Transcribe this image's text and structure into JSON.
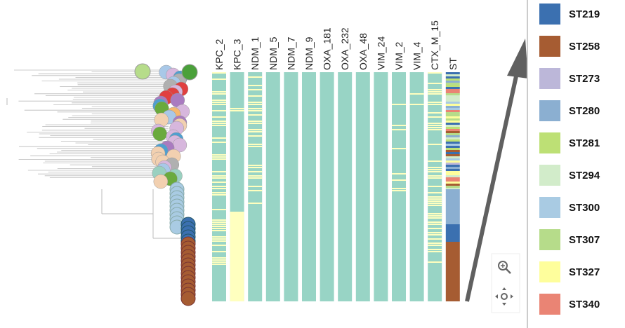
{
  "heatmap": {
    "columns": [
      "KPC_2",
      "KPC_3",
      "NDM_1",
      "NDM_5",
      "NDM_7",
      "NDM_9",
      "OXA_181",
      "OXA_232",
      "OXA_48",
      "VIM_24",
      "VIM_2",
      "VIM_4",
      "CTX_M_15",
      "ST"
    ]
  },
  "legend": [
    {
      "label": "ST219",
      "color": "#3b70b0"
    },
    {
      "label": "ST258",
      "color": "#a65c32"
    },
    {
      "label": "ST273",
      "color": "#bcb7d9"
    },
    {
      "label": "ST280",
      "color": "#8bafd1"
    },
    {
      "label": "ST281",
      "color": "#bde075"
    },
    {
      "label": "ST294",
      "color": "#d2ecca"
    },
    {
      "label": "ST300",
      "color": "#a9cbe3"
    },
    {
      "label": "ST307",
      "color": "#b6dc8a"
    },
    {
      "label": "ST327",
      "color": "#fefe9c"
    },
    {
      "label": "ST340",
      "color": "#ea8474"
    }
  ]
}
